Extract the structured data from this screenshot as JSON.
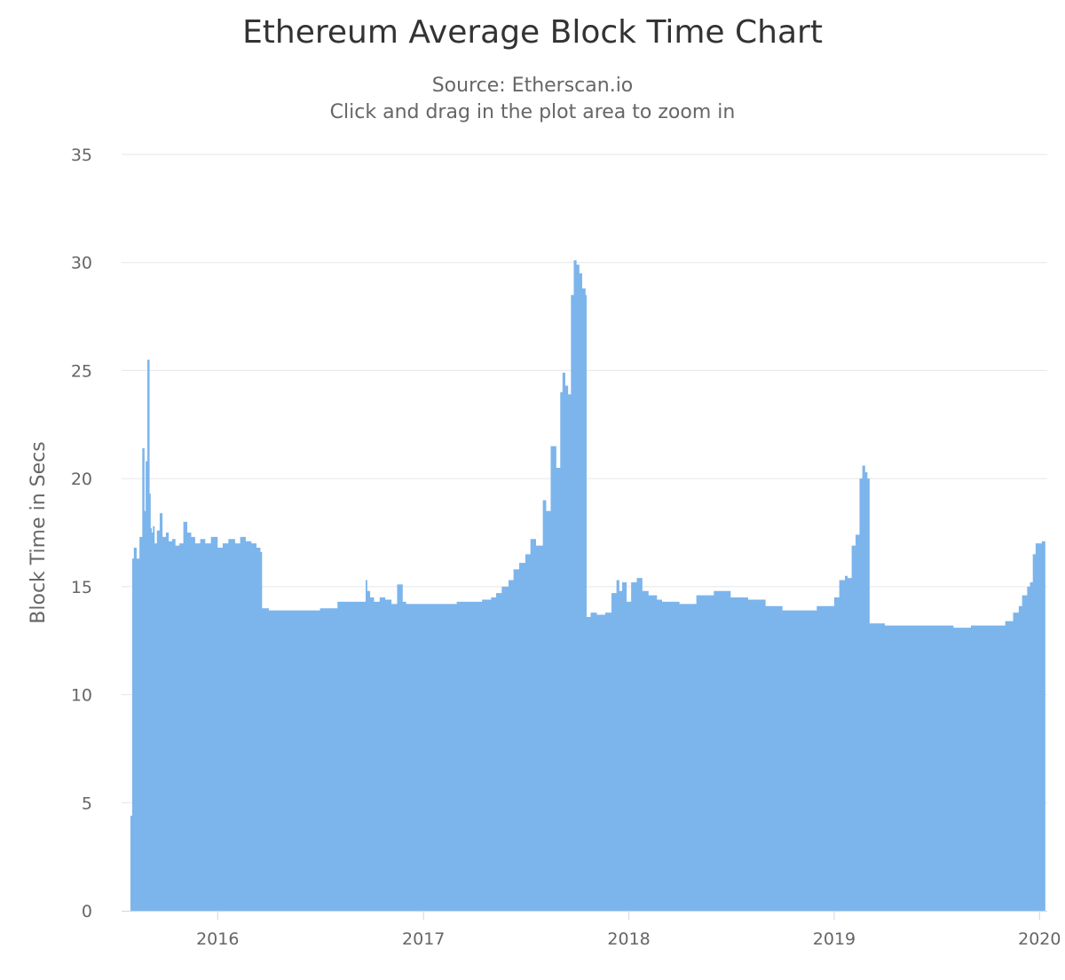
{
  "chart_data": {
    "type": "area",
    "title": "Ethereum Average Block Time Chart",
    "subtitle_lines": [
      "Source: Etherscan.io",
      "Click and drag in the plot area to zoom in"
    ],
    "xlabel": "",
    "ylabel": "Block Time in Secs",
    "ylim": [
      0,
      35
    ],
    "yticks": [
      "0",
      "5",
      "10",
      "15",
      "20",
      "25",
      "30",
      "35"
    ],
    "xlim": [
      "2015-07-30",
      "2020-01-05"
    ],
    "xticks": [
      {
        "date": "2016-01-01",
        "label": "2016"
      },
      {
        "date": "2017-01-01",
        "label": "2017"
      },
      {
        "date": "2018-01-01",
        "label": "2018"
      },
      {
        "date": "2019-01-01",
        "label": "2019"
      },
      {
        "date": "2020-01-01",
        "label": "2020"
      }
    ],
    "grid": true,
    "legend": "none",
    "colors": {
      "series": "#7cb5ec",
      "grid": "#e6e6e6",
      "axis": "#ccd6eb"
    },
    "series": [
      {
        "x": [
          "2015-07-30",
          "2015-08-02",
          "2015-08-05",
          "2015-08-10",
          "2015-08-15",
          "2015-08-20",
          "2015-08-24",
          "2015-08-26",
          "2015-08-29",
          "2015-09-02",
          "2015-09-04",
          "2015-09-06",
          "2015-09-08",
          "2015-09-11",
          "2015-09-15",
          "2015-09-20",
          "2015-09-25",
          "2015-10-01",
          "2015-10-06",
          "2015-10-12",
          "2015-10-18",
          "2015-10-25",
          "2015-11-01",
          "2015-11-08",
          "2015-11-15",
          "2015-11-22",
          "2015-12-01",
          "2015-12-10",
          "2015-12-20",
          "2016-01-01",
          "2016-01-10",
          "2016-01-20",
          "2016-02-01",
          "2016-02-10",
          "2016-02-20",
          "2016-03-01",
          "2016-03-10",
          "2016-03-17",
          "2016-03-20",
          "2016-04-01",
          "2016-05-01",
          "2016-06-01",
          "2016-07-01",
          "2016-08-01",
          "2016-09-01",
          "2016-09-20",
          "2016-09-23",
          "2016-09-28",
          "2016-10-05",
          "2016-10-15",
          "2016-10-25",
          "2016-11-05",
          "2016-11-15",
          "2016-11-25",
          "2016-12-01",
          "2017-01-01",
          "2017-02-01",
          "2017-03-01",
          "2017-03-20",
          "2017-04-01",
          "2017-04-15",
          "2017-05-01",
          "2017-05-10",
          "2017-05-20",
          "2017-06-01",
          "2017-06-10",
          "2017-06-20",
          "2017-07-01",
          "2017-07-10",
          "2017-07-20",
          "2017-08-01",
          "2017-08-07",
          "2017-08-15",
          "2017-08-25",
          "2017-09-01",
          "2017-09-05",
          "2017-09-10",
          "2017-09-15",
          "2017-09-20",
          "2017-09-25",
          "2017-09-30",
          "2017-10-05",
          "2017-10-10",
          "2017-10-16",
          "2017-10-18",
          "2017-10-25",
          "2017-11-05",
          "2017-11-20",
          "2017-12-01",
          "2017-12-10",
          "2017-12-15",
          "2017-12-20",
          "2017-12-28",
          "2018-01-05",
          "2018-01-15",
          "2018-01-25",
          "2018-02-05",
          "2018-02-20",
          "2018-03-01",
          "2018-04-01",
          "2018-05-01",
          "2018-06-01",
          "2018-07-01",
          "2018-08-01",
          "2018-09-01",
          "2018-10-01",
          "2018-11-01",
          "2018-12-01",
          "2019-01-01",
          "2019-01-10",
          "2019-01-20",
          "2019-01-25",
          "2019-02-01",
          "2019-02-08",
          "2019-02-15",
          "2019-02-20",
          "2019-02-25",
          "2019-03-01",
          "2019-03-05",
          "2019-04-01",
          "2019-05-01",
          "2019-06-01",
          "2019-07-01",
          "2019-08-01",
          "2019-09-01",
          "2019-10-01",
          "2019-11-01",
          "2019-11-15",
          "2019-11-25",
          "2019-12-01",
          "2019-12-10",
          "2019-12-15",
          "2019-12-20",
          "2019-12-25",
          "2020-01-01",
          "2020-01-05"
        ],
        "y": [
          4.4,
          16.3,
          16.8,
          16.3,
          17.3,
          21.4,
          18.5,
          20.8,
          25.5,
          19.3,
          17.7,
          17.5,
          17.8,
          17.0,
          17.6,
          18.4,
          17.3,
          17.5,
          17.1,
          17.2,
          16.9,
          17.0,
          18.0,
          17.5,
          17.3,
          17.0,
          17.2,
          17.0,
          17.3,
          16.8,
          17.0,
          17.2,
          17.0,
          17.3,
          17.1,
          17.0,
          16.8,
          16.6,
          14.0,
          13.9,
          13.9,
          13.9,
          14.0,
          14.3,
          14.3,
          15.3,
          14.8,
          14.5,
          14.3,
          14.5,
          14.4,
          14.2,
          15.1,
          14.3,
          14.2,
          14.2,
          14.2,
          14.3,
          14.3,
          14.3,
          14.4,
          14.5,
          14.7,
          15.0,
          15.3,
          15.8,
          16.1,
          16.5,
          17.2,
          16.9,
          19.0,
          18.5,
          21.5,
          20.5,
          24.0,
          24.9,
          24.3,
          23.9,
          28.5,
          30.1,
          29.9,
          29.5,
          28.8,
          28.5,
          13.6,
          13.8,
          13.7,
          13.8,
          14.7,
          15.3,
          14.8,
          15.2,
          14.3,
          15.2,
          15.4,
          14.8,
          14.6,
          14.4,
          14.3,
          14.2,
          14.6,
          14.8,
          14.5,
          14.4,
          14.1,
          13.9,
          13.9,
          14.1,
          14.5,
          15.3,
          15.5,
          15.4,
          16.9,
          17.4,
          20.0,
          20.6,
          20.3,
          20.0,
          13.3,
          13.2,
          13.2,
          13.2,
          13.2,
          13.1,
          13.2,
          13.2,
          13.4,
          13.8,
          14.1,
          14.6,
          15.0,
          15.2,
          16.5,
          17.0,
          17.0,
          17.1
        ],
        "values_note_none": true
      }
    ]
  }
}
